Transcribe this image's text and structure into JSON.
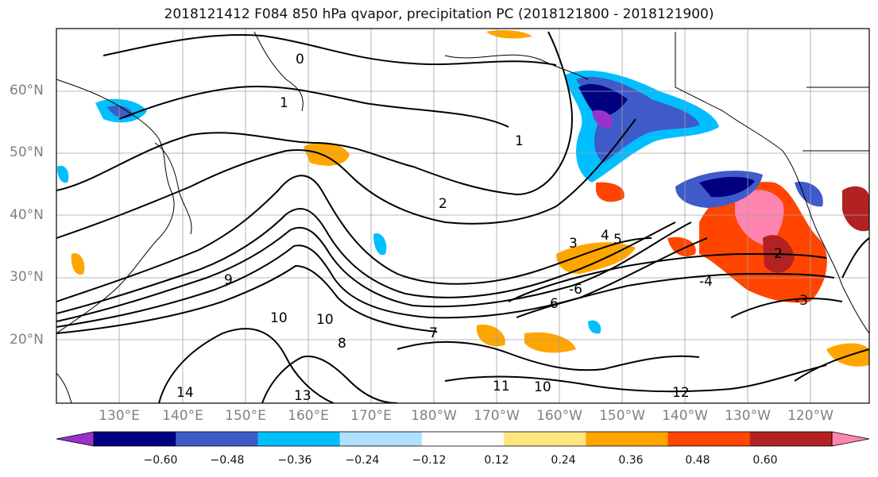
{
  "title": "2018121412 F084 850 hPa qvapor, precipitation PC (2018121800 - 2018121900)",
  "lat_labels": [
    "60°N",
    "50°N",
    "40°N",
    "30°N",
    "20°N"
  ],
  "lon_labels": [
    "130°E",
    "140°E",
    "150°E",
    "160°E",
    "170°E",
    "180°W",
    "170°W",
    "160°W",
    "150°W",
    "140°W",
    "130°W",
    "120°W"
  ],
  "contour_labels": [
    "0",
    "1",
    "1",
    "2",
    "3",
    "4",
    "5",
    "6",
    "7",
    "8",
    "9",
    "10",
    "10",
    "10",
    "11",
    "12",
    "13",
    "14",
    "-6",
    "-4",
    "-3",
    "-2"
  ],
  "colorbar": {
    "ticks": [
      "−0.60",
      "−0.48",
      "−0.36",
      "−0.24",
      "−0.12",
      "0.12",
      "0.24",
      "0.36",
      "0.48",
      "0.60"
    ],
    "colors": [
      "#9932cc",
      "#000080",
      "#3e5bc9",
      "#00bfff",
      "#b0e0ff",
      "#ffffff",
      "#ffe680",
      "#ffa500",
      "#ff4500",
      "#b22222",
      "#ff85b0"
    ],
    "extend": "both"
  }
}
